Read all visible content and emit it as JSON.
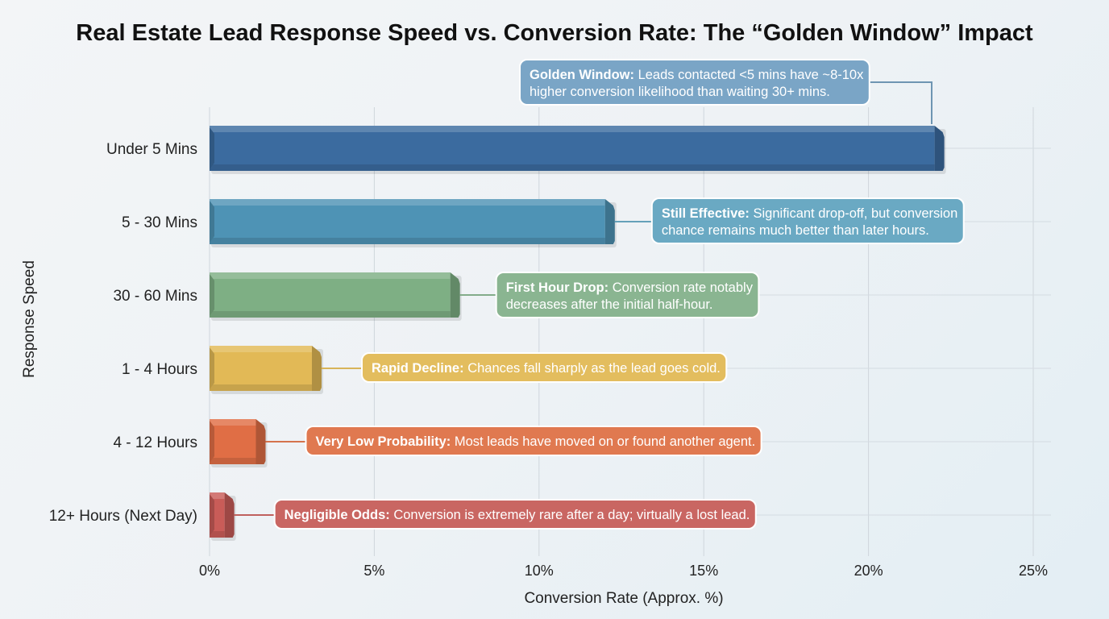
{
  "chart_data": {
    "type": "bar",
    "orientation": "horizontal",
    "title": "Real Estate Lead Response Speed vs. Conversion Rate: The “Golden Window” Impact",
    "xlabel": "Conversion Rate (Approx. %)",
    "ylabel": "Response Speed",
    "xlim": [
      0,
      25
    ],
    "xticks": [
      0,
      5,
      10,
      15,
      20,
      25
    ],
    "xtick_labels": [
      "0%",
      "5%",
      "10%",
      "15%",
      "20%",
      "25%"
    ],
    "grid": true,
    "legend": "none",
    "categories": [
      "Under 5 Mins",
      "5 - 30 Mins",
      "30 - 60 Mins",
      "1 - 4 Hours",
      "4 - 12 Hours",
      "12+ Hours (Next Day)"
    ],
    "values": [
      22.3,
      12.3,
      7.6,
      3.4,
      1.7,
      0.75
    ],
    "colors": [
      "#3b6b9f",
      "#4e93b5",
      "#7eaf84",
      "#e2b956",
      "#e06e45",
      "#c95c58"
    ],
    "annotations": [
      {
        "bold": "Golden Window:",
        "text": "Leads contacted <5 mins have ~8-10x",
        "text2": "higher conversion likelihood than waiting 30+ mins.",
        "color": "#7aa5c6"
      },
      {
        "bold": "Still Effective:",
        "text": "Significant drop-off, but conversion",
        "text2": "chance remains much better than later hours.",
        "color": "#6aa9c3"
      },
      {
        "bold": "First Hour Drop:",
        "text": "Conversion rate notably",
        "text2": "decreases after the initial half-hour.",
        "color": "#8ab591"
      },
      {
        "bold": "Rapid Decline:",
        "text": "Chances fall sharply as the lead goes cold.",
        "text2": "",
        "color": "#e3bd5e"
      },
      {
        "bold": "Very Low Probability:",
        "text": "Most leads have moved on or found another agent.",
        "text2": "",
        "color": "#e07950"
      },
      {
        "bold": "Negligible Odds:",
        "text": "Conversion is extremely rare after a day; virtually a lost lead.",
        "text2": "",
        "color": "#c96662"
      }
    ]
  }
}
